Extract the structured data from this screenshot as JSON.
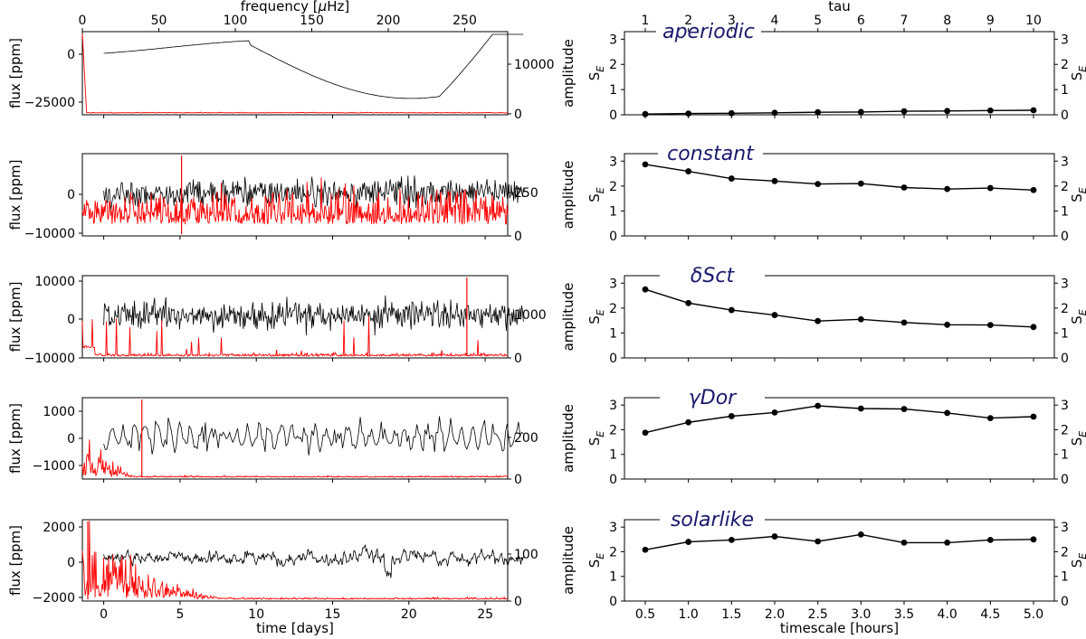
{
  "left_panel": {
    "xlabel_bottom": "time [days]",
    "xlabel_top": "frequency [",
    "xlabel_top_mu": "μ",
    "xlabel_top_unit": "Hz]",
    "ylabel_left": "flux [ppm]",
    "ylabel_right": "amplitude",
    "time_ticks": [
      0,
      5,
      10,
      15,
      20,
      25
    ],
    "freq_ticks": [
      0,
      50,
      100,
      150,
      200,
      250
    ],
    "rows": [
      {
        "flux_ticks": [
          "0",
          "−25000"
        ],
        "amp_ticks": [
          "10000",
          "0"
        ]
      },
      {
        "flux_ticks": [
          "0",
          "−10000"
        ],
        "amp_ticks": [
          "250",
          "0"
        ]
      },
      {
        "flux_ticks": [
          "10000",
          "0",
          "−10000"
        ],
        "amp_ticks": [
          "1000",
          "0"
        ]
      },
      {
        "flux_ticks": [
          "1000",
          "0",
          "−1000"
        ],
        "amp_ticks": [
          "200",
          "0"
        ]
      },
      {
        "flux_ticks": [
          "2000",
          "0",
          "−2000"
        ],
        "amp_ticks": [
          "100",
          "0"
        ]
      }
    ]
  },
  "right_panel": {
    "xlabel_bottom": "timescale [hours]",
    "xlabel_top": "tau",
    "ylabel_main": "S",
    "ylabel_sub": "E",
    "y_ticks": [
      0,
      1,
      2,
      3
    ],
    "tau_ticks": [
      1,
      2,
      3,
      4,
      5,
      6,
      7,
      8,
      9,
      10
    ],
    "timescale_labels": [
      "0.5",
      "1.0",
      "1.5",
      "2.0",
      "2.5",
      "3.0",
      "3.5",
      "4.0",
      "4.5",
      "5.0"
    ]
  },
  "chart_data": {
    "type": "line",
    "title": "",
    "xlabel": "timescale [hours]",
    "ylabel": "S_E",
    "ylim": [
      0,
      3.3
    ],
    "x": [
      0.5,
      1.0,
      1.5,
      2.0,
      2.5,
      3.0,
      3.5,
      4.0,
      4.5,
      5.0
    ],
    "series": [
      {
        "name": "aperiodic",
        "values": [
          0.03,
          0.05,
          0.06,
          0.08,
          0.1,
          0.11,
          0.14,
          0.15,
          0.17,
          0.18
        ]
      },
      {
        "name": "constant",
        "values": [
          2.87,
          2.59,
          2.3,
          2.2,
          2.08,
          2.1,
          1.94,
          1.88,
          1.92,
          1.84
        ]
      },
      {
        "name": "δSct",
        "values": [
          2.75,
          2.2,
          1.92,
          1.72,
          1.48,
          1.55,
          1.42,
          1.33,
          1.32,
          1.24
        ]
      },
      {
        "name": "γDor",
        "values": [
          1.88,
          2.3,
          2.55,
          2.7,
          2.97,
          2.86,
          2.84,
          2.68,
          2.47,
          2.53
        ]
      },
      {
        "name": "solarlike",
        "values": [
          2.08,
          2.4,
          2.48,
          2.62,
          2.42,
          2.7,
          2.37,
          2.37,
          2.48,
          2.5
        ]
      }
    ]
  }
}
